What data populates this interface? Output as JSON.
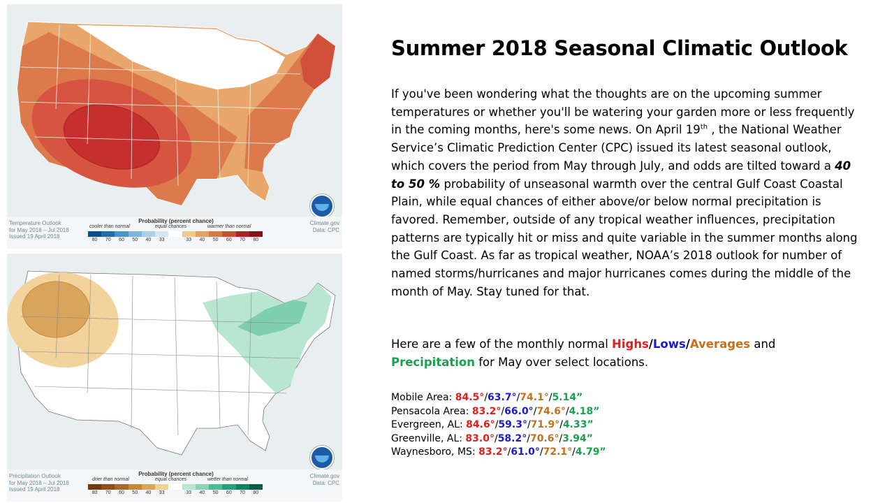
{
  "title": "Summer 2018 Seasonal Climatic Outlook",
  "body": {
    "p1": "If you've been wondering what the thoughts are on the upcoming summer temperatures or whether you'll be watering your garden more or less frequently in the coming months, here's some news. On April 19",
    "p1_sup": "th",
    "p2": " , the National Weather Service’s Climatic Prediction Center (CPC) issued its latest seasonal outlook, which covers the period from May through July, and odds are tilted toward a ",
    "p2_emph": "40 to 50 %",
    "p3": " probability of unseasonal warmth over the central Gulf Coast Coastal Plain, while equal chances of either above/or below normal precipitation is favored. Remember, outside of any tropical weather influences, precipitation patterns are typically hit or miss and quite variable in the summer months along the Gulf Coast. As far as tropical weather, NOAA’s 2018 outlook for number of named storms/hurricanes and major hurricanes comes during the middle of the month of May. Stay tuned for that."
  },
  "intro": {
    "pre": "Here are a few of the monthly normal ",
    "highs": "Highs",
    "slash": "/",
    "lows": "Lows",
    "averages": "Averages",
    "and": " and",
    "precipitation": "Precipitation",
    "post": " for May over select locations."
  },
  "locations": [
    {
      "name": "Mobile Area: ",
      "high": "84.5°",
      "low": "63.7°",
      "avg": "74.1°",
      "precip": "5.14”"
    },
    {
      "name": "Pensacola Area: ",
      "high": "83.2°",
      "low": "66.0°",
      "avg": "74.6°",
      "precip": "4.18”"
    },
    {
      "name": "Evergreen, AL: ",
      "high": "84.6°",
      "low": "59.3°",
      "avg": "71.9°",
      "precip": "4.33”"
    },
    {
      "name": "Greenville, AL: ",
      "high": "83.0°",
      "low": "58.2°",
      "avg": "70.6°",
      "precip": "3.94”"
    },
    {
      "name": "Waynesboro, MS: ",
      "high": "83.2°",
      "low": "61.0°",
      "avg": "72.1°",
      "precip": "4.79”"
    }
  ],
  "temp_map": {
    "footer_left": [
      "Temperature Outlook",
      "for May 2018 – Jul 2018",
      "Issued 19 April 2018"
    ],
    "footer_right": [
      "Climate.gov",
      "Data: CPC"
    ],
    "legend_title": "Probability (percent chance)",
    "legend_low": "cooler than normal",
    "legend_mid": "equal chances",
    "legend_high": "warmer than normal",
    "ticks": [
      "80",
      "70",
      "60",
      "50",
      "40",
      "33",
      "33",
      "40",
      "50",
      "60",
      "70",
      "80"
    ],
    "colors": [
      "#0b4f8a",
      "#1f6fb0",
      "#4c93c8",
      "#7fb4dc",
      "#a9cfe9",
      "#d4e6f3",
      "#ffffff",
      "#f1c98f",
      "#e3a062",
      "#d97749",
      "#cf4d36",
      "#b51e26",
      "#8b0d17"
    ]
  },
  "precip_map": {
    "footer_left": [
      "Precipitation Outlook",
      "for May 2018 – Jul 2018",
      "Issued 19 April 2018"
    ],
    "footer_right": [
      "Climate.gov",
      "Data: CPC"
    ],
    "legend_title": "Probability (percent chance)",
    "legend_low": "drier than normal",
    "legend_mid": "equal chances",
    "legend_high": "wetter than normal",
    "ticks": [
      "80",
      "70",
      "60",
      "50",
      "40",
      "33",
      "33",
      "40",
      "50",
      "60",
      "70",
      "80"
    ],
    "colors": [
      "#6d3a12",
      "#8e4f1c",
      "#a9682b",
      "#c6873f",
      "#dba45b",
      "#f1d19a",
      "#ffffff",
      "#b8e6d0",
      "#86d3b6",
      "#51bb98",
      "#2a9f7f",
      "#128064",
      "#065c47"
    ]
  }
}
